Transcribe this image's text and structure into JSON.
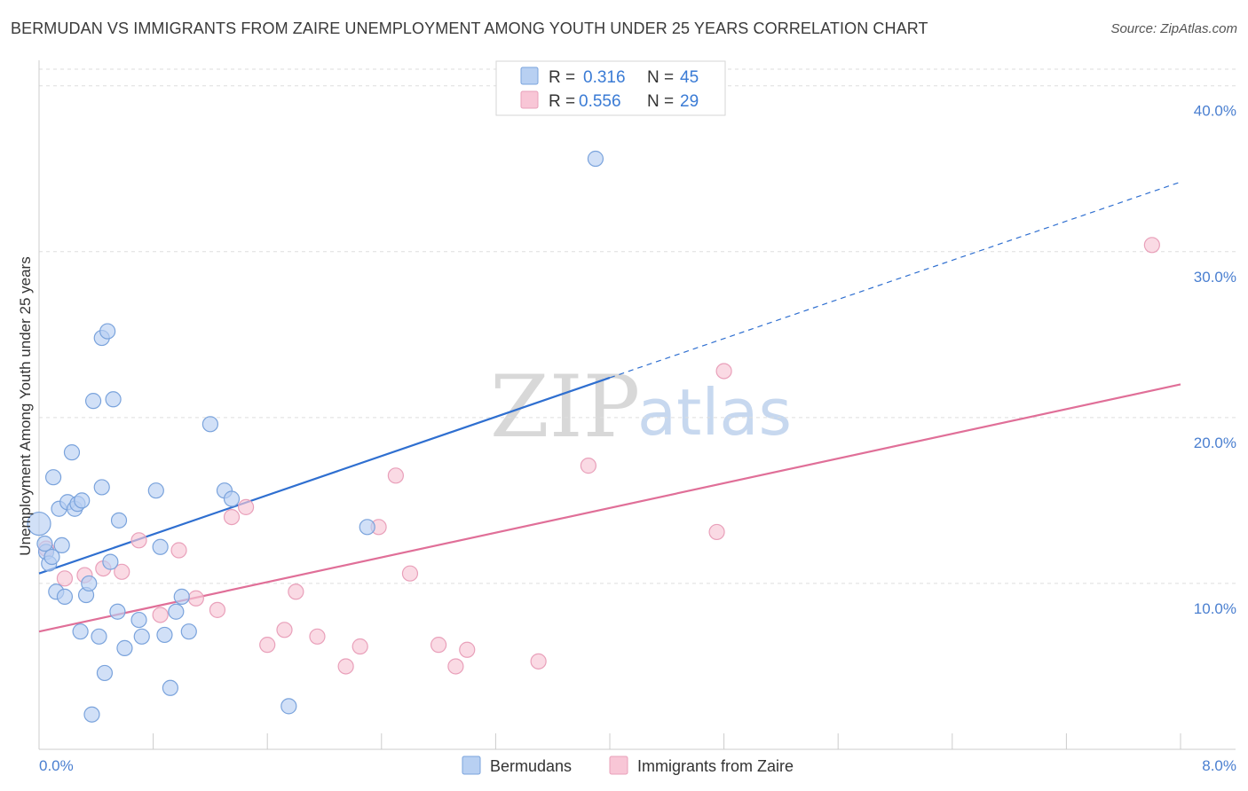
{
  "title": "BERMUDAN VS IMMIGRANTS FROM ZAIRE UNEMPLOYMENT AMONG YOUTH UNDER 25 YEARS CORRELATION CHART",
  "source": "Source: ZipAtlas.com",
  "watermark": {
    "zip": "ZIP",
    "atlas": "atlas"
  },
  "legend": {
    "r_label": "R =",
    "n_label": "N =",
    "rows": [
      {
        "r": "0.316",
        "n": "45"
      },
      {
        "r": "0.556",
        "n": "29"
      }
    ]
  },
  "colors": {
    "blue_fill": "#b8d0f2",
    "blue_stroke": "#7aa3dc",
    "blue_line": "#2f6fd0",
    "pink_fill": "#f8c6d6",
    "pink_stroke": "#e9a0ba",
    "pink_line": "#e06f98",
    "tick_label": "#4a7fd0"
  },
  "chart_data": {
    "type": "scatter",
    "title": "BERMUDAN VS IMMIGRANTS FROM ZAIRE UNEMPLOYMENT AMONG YOUTH UNDER 25 YEARS CORRELATION CHART",
    "xlabel": "",
    "ylabel": "Unemployment Among Youth under 25 years",
    "xlim": [
      0,
      8
    ],
    "ylim": [
      0,
      41
    ],
    "x_tick_labels": [
      "0.0%",
      "8.0%"
    ],
    "y_ticks": [
      10,
      20,
      30,
      40
    ],
    "y_tick_labels": [
      "10.0%",
      "20.0%",
      "30.0%",
      "40.0%"
    ],
    "grid": true,
    "legend_position": "top-center",
    "series": [
      {
        "name": "Bermudans",
        "color": "#b8d0f2",
        "r": 0.316,
        "n": 45,
        "points": [
          [
            0.0,
            13.6
          ],
          [
            0.05,
            11.9
          ],
          [
            0.07,
            11.2
          ],
          [
            0.1,
            16.4
          ],
          [
            0.12,
            9.5
          ],
          [
            0.14,
            14.5
          ],
          [
            0.16,
            12.3
          ],
          [
            0.18,
            9.2
          ],
          [
            0.2,
            14.9
          ],
          [
            0.23,
            17.9
          ],
          [
            0.25,
            14.5
          ],
          [
            0.27,
            14.8
          ],
          [
            0.29,
            7.1
          ],
          [
            0.3,
            15.0
          ],
          [
            0.33,
            9.3
          ],
          [
            0.35,
            10.0
          ],
          [
            0.37,
            2.1
          ],
          [
            0.38,
            21.0
          ],
          [
            0.42,
            6.8
          ],
          [
            0.44,
            15.8
          ],
          [
            0.44,
            24.8
          ],
          [
            0.46,
            4.6
          ],
          [
            0.48,
            25.2
          ],
          [
            0.5,
            11.3
          ],
          [
            0.52,
            21.1
          ],
          [
            0.55,
            8.3
          ],
          [
            0.56,
            13.8
          ],
          [
            0.6,
            6.1
          ],
          [
            0.7,
            7.8
          ],
          [
            0.72,
            6.8
          ],
          [
            0.82,
            15.6
          ],
          [
            0.85,
            12.2
          ],
          [
            0.88,
            6.9
          ],
          [
            0.92,
            3.7
          ],
          [
            0.96,
            8.3
          ],
          [
            1.0,
            9.2
          ],
          [
            1.05,
            7.1
          ],
          [
            1.2,
            19.6
          ],
          [
            1.3,
            15.6
          ],
          [
            1.35,
            15.1
          ],
          [
            1.75,
            2.6
          ],
          [
            2.3,
            13.4
          ],
          [
            3.9,
            35.6
          ],
          [
            0.04,
            12.4
          ],
          [
            0.09,
            11.6
          ]
        ],
        "trend": {
          "x0": 0.0,
          "y0": 10.6,
          "x1": 4.0,
          "y1": 22.4,
          "dashed_to_x": 8.0,
          "dashed_to_y": 34.2
        }
      },
      {
        "name": "Immigrants from Zaire",
        "color": "#f8c6d6",
        "r": 0.556,
        "n": 29,
        "points": [
          [
            0.05,
            12.1
          ],
          [
            0.18,
            10.3
          ],
          [
            0.32,
            10.5
          ],
          [
            0.45,
            10.9
          ],
          [
            0.58,
            10.7
          ],
          [
            0.7,
            12.6
          ],
          [
            0.85,
            8.1
          ],
          [
            0.98,
            12.0
          ],
          [
            1.1,
            9.1
          ],
          [
            1.25,
            8.4
          ],
          [
            1.35,
            14.0
          ],
          [
            1.45,
            14.6
          ],
          [
            1.6,
            6.3
          ],
          [
            1.72,
            7.2
          ],
          [
            1.8,
            9.5
          ],
          [
            1.95,
            6.8
          ],
          [
            2.15,
            5.0
          ],
          [
            2.25,
            6.2
          ],
          [
            2.38,
            13.4
          ],
          [
            2.5,
            16.5
          ],
          [
            2.6,
            10.6
          ],
          [
            2.8,
            6.3
          ],
          [
            2.92,
            5.0
          ],
          [
            3.0,
            6.0
          ],
          [
            3.5,
            5.3
          ],
          [
            3.85,
            17.1
          ],
          [
            4.75,
            13.1
          ],
          [
            4.8,
            22.8
          ],
          [
            7.8,
            30.4
          ]
        ],
        "trend": {
          "x0": 0.0,
          "y0": 7.1,
          "x1": 8.0,
          "y1": 22.0
        }
      }
    ]
  },
  "bottom_legend": {
    "items": [
      {
        "label": "Bermudans"
      },
      {
        "label": "Immigrants from Zaire"
      }
    ]
  }
}
